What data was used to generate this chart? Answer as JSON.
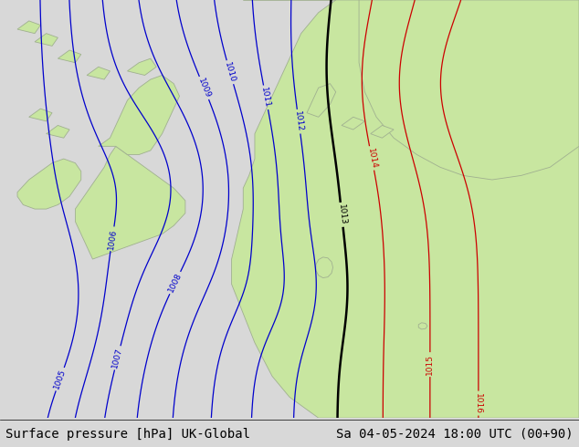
{
  "title_left": "Surface pressure [hPa] UK-Global",
  "title_right": "Sa 04-05-2024 18:00 UTC (00+90)",
  "sea_color": "#d8d8d8",
  "land_color": "#c8e6a0",
  "land_edge_color": "#a0b090",
  "bottom_bar_color": "#ffffff",
  "blue_contour_color": "#0000cc",
  "black_contour_color": "#000000",
  "red_contour_color": "#cc0000",
  "font_size_title": 10,
  "blue_levels": [
    1005,
    1006,
    1007,
    1008,
    1009,
    1010,
    1011,
    1012
  ],
  "black_levels": [
    1013
  ],
  "red_levels": [
    1014,
    1015,
    1016
  ],
  "figsize": [
    6.34,
    4.9
  ],
  "dpi": 100
}
